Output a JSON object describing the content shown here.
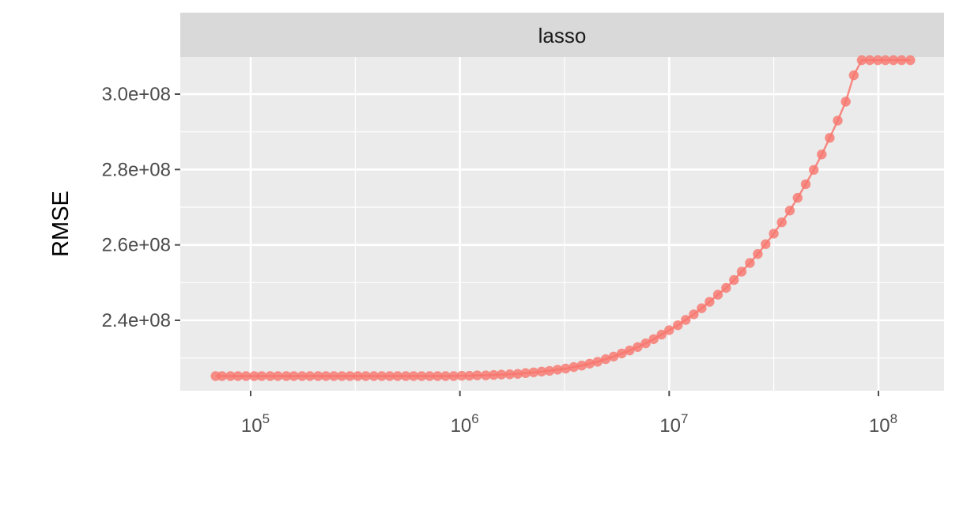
{
  "chart_data": {
    "type": "line",
    "panel_title": "lasso",
    "xlabel": "",
    "ylabel": "RMSE",
    "x_scale": "log10",
    "xlim": [
      50000,
      200000000
    ],
    "ylim": [
      220000000,
      308000000
    ],
    "x_ticks": [
      {
        "value": 100000,
        "base": "10",
        "exp": "5"
      },
      {
        "value": 1000000,
        "base": "10",
        "exp": "6"
      },
      {
        "value": 10000000,
        "base": "10",
        "exp": "7"
      },
      {
        "value": 100000000,
        "base": "10",
        "exp": "8"
      }
    ],
    "y_ticks": [
      {
        "value": 240000000,
        "label": "2.4e+08"
      },
      {
        "value": 260000000,
        "label": "2.6e+08"
      },
      {
        "value": 280000000,
        "label": "2.8e+08"
      },
      {
        "value": 300000000,
        "label": "3.0e+08"
      }
    ],
    "grid": true,
    "legend": "none",
    "colors": {
      "series": "#F8766D",
      "panel": "#EBEBEB",
      "strip": "#D9D9D9",
      "grid": "#FFFFFF",
      "ticks": "#4D4D4D"
    },
    "series": [
      {
        "x": [
          68000,
          73000,
          80000,
          87000,
          95000,
          104000,
          113000,
          124000,
          135000,
          148000,
          161000,
          176000,
          192000,
          210000,
          229000,
          250000,
          273000,
          298000,
          325000,
          355000,
          388000,
          423000,
          462000,
          504000,
          551000,
          601000,
          656000,
          717000,
          782000,
          854000,
          933000,
          1020000,
          1110000,
          1210000,
          1330000,
          1450000,
          1580000,
          1730000,
          1890000,
          2060000,
          2250000,
          2460000,
          2680000,
          2930000,
          3200000,
          3500000,
          3820000,
          4170000,
          4550000,
          4970000,
          5430000,
          5930000,
          6470000,
          7070000,
          7720000,
          8430000,
          9200000,
          10000000,
          11000000,
          12000000,
          13100000,
          14300000,
          15600000,
          17100000,
          18700000,
          20400000,
          22200000,
          24300000,
          26500000,
          28900000,
          31600000,
          34500000,
          37700000,
          41100000,
          44900000,
          49100000,
          53600000,
          58500000,
          63900000,
          69800000,
          76200000,
          83200000,
          90900000,
          99300000,
          108000000,
          118000000,
          129000000,
          142000000
        ],
        "y": [
          225200000,
          225200000,
          225200000,
          225200000,
          225200000,
          225200000,
          225200000,
          225200000,
          225200000,
          225200000,
          225200000,
          225200000,
          225200000,
          225200000,
          225200000,
          225200000,
          225200000,
          225200000,
          225200000,
          225200000,
          225200000,
          225200000,
          225200000,
          225200000,
          225200000,
          225200000,
          225200000,
          225200000,
          225200000,
          225200000,
          225200000,
          225300000,
          225300000,
          225400000,
          225400000,
          225500000,
          225600000,
          225700000,
          225800000,
          226000000,
          226200000,
          226400000,
          226600000,
          226900000,
          227200000,
          227600000,
          228000000,
          228500000,
          229000000,
          229700000,
          230400000,
          231200000,
          232000000,
          232900000,
          233900000,
          235000000,
          236200000,
          237400000,
          238700000,
          240100000,
          241600000,
          243200000,
          244900000,
          246800000,
          248600000,
          250700000,
          252900000,
          255200000,
          257600000,
          260200000,
          263000000,
          266000000,
          269100000,
          272500000,
          276100000,
          279900000,
          284000000,
          288400000,
          293000000,
          298000000,
          305000000,
          309000000,
          309000000,
          309000000,
          309000000,
          309000000,
          309000000,
          309000000
        ]
      }
    ]
  }
}
